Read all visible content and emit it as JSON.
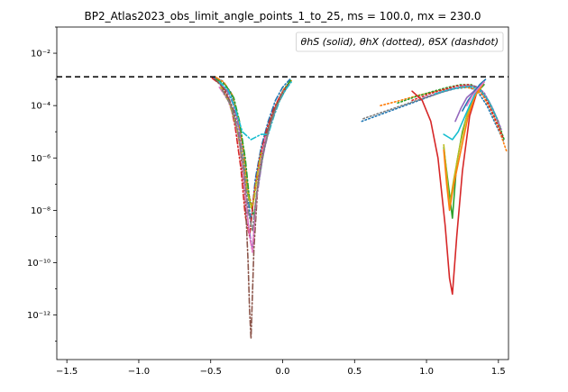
{
  "chart_data": {
    "type": "line",
    "title": "BP2_Atlas2023_obs_limit_angle_points_1_to_25, ms = 100.0, mx = 230.0",
    "xlabel": "",
    "ylabel": "",
    "xlim": [
      -1.57,
      1.57
    ],
    "ylim_log10": [
      -13.7,
      -1.0
    ],
    "yscale": "log",
    "x_ticks": [
      -1.5,
      -1.0,
      -0.5,
      0.0,
      0.5,
      1.0,
      1.5
    ],
    "x_tick_labels": [
      "−1.5",
      "−1.0",
      "−0.5",
      "0.0",
      "0.5",
      "1.0",
      "1.5"
    ],
    "y_ticks_log10": [
      -12,
      -10,
      -8,
      -6,
      -4,
      -2
    ],
    "y_tick_labels": [
      "10⁻¹²",
      "10⁻¹⁰",
      "10⁻⁸",
      "10⁻⁶",
      "10⁻⁴",
      "10⁻²"
    ],
    "legend_text": "θhS (solid), θhX (dotted), θSX (dashdot)",
    "legend_placement": "top-right",
    "grid": false,
    "reference_line": {
      "y_log10": -2.9,
      "style": "dashed",
      "color": "#000000"
    },
    "series": [
      {
        "style": "dashdot",
        "color": "#1f77b4",
        "x": [
          -0.48,
          -0.42,
          -0.36,
          -0.32,
          -0.28,
          -0.25,
          -0.22,
          -0.19,
          -0.15,
          -0.1,
          -0.05,
          0.0,
          0.05
        ],
        "y_log10": [
          -2.95,
          -3.05,
          -3.5,
          -4.3,
          -5.5,
          -7.0,
          -8.5,
          -6.8,
          -5.6,
          -4.6,
          -3.8,
          -3.3,
          -3.0
        ]
      },
      {
        "style": "dashdot",
        "color": "#ff7f0e",
        "x": [
          -0.47,
          -0.41,
          -0.35,
          -0.31,
          -0.27,
          -0.24,
          -0.21,
          -0.18,
          -0.14,
          -0.09,
          -0.04,
          0.01,
          0.06
        ],
        "y_log10": [
          -2.9,
          -3.1,
          -3.6,
          -4.5,
          -5.8,
          -7.3,
          -7.9,
          -6.9,
          -5.7,
          -4.7,
          -3.9,
          -3.35,
          -3.05
        ]
      },
      {
        "style": "dashdot",
        "color": "#2ca02c",
        "x": [
          -0.46,
          -0.4,
          -0.34,
          -0.3,
          -0.26,
          -0.23,
          -0.2,
          -0.17,
          -0.13,
          -0.08,
          -0.03,
          0.02,
          0.06
        ],
        "y_log10": [
          -3.0,
          -3.2,
          -3.7,
          -4.6,
          -6.0,
          -7.6,
          -8.2,
          -7.0,
          -5.7,
          -4.6,
          -3.8,
          -3.3,
          -3.0
        ]
      },
      {
        "style": "dashdot",
        "color": "#d62728",
        "x": [
          -0.49,
          -0.43,
          -0.37,
          -0.33,
          -0.29,
          -0.26,
          -0.23,
          -0.2,
          -0.16,
          -0.11,
          -0.06,
          -0.01,
          0.04
        ],
        "y_log10": [
          -2.95,
          -3.2,
          -3.8,
          -4.8,
          -6.4,
          -8.2,
          -9.0,
          -7.4,
          -6.0,
          -4.9,
          -4.1,
          -3.55,
          -3.2
        ]
      },
      {
        "style": "dashdot",
        "color": "#9467bd",
        "x": [
          -0.45,
          -0.39,
          -0.34,
          -0.3,
          -0.27,
          -0.24,
          -0.21,
          -0.18,
          -0.14,
          -0.09,
          -0.04
        ],
        "y_log10": [
          -3.1,
          -3.4,
          -4.0,
          -5.0,
          -6.5,
          -8.5,
          -9.5,
          -7.5,
          -6.0,
          -4.8,
          -4.0
        ]
      },
      {
        "style": "dashdot",
        "color": "#8c564b",
        "x": [
          -0.47,
          -0.4,
          -0.34,
          -0.3,
          -0.26,
          -0.24,
          -0.23,
          -0.22,
          -0.2,
          -0.17,
          -0.12,
          -0.06,
          0.0,
          0.04
        ],
        "y_log10": [
          -3.0,
          -3.4,
          -4.2,
          -5.4,
          -7.5,
          -10.0,
          -11.8,
          -12.9,
          -9.5,
          -6.8,
          -5.2,
          -4.2,
          -3.6,
          -3.2
        ]
      },
      {
        "style": "dashdot",
        "color": "#e377c2",
        "x": [
          -0.44,
          -0.38,
          -0.33,
          -0.29,
          -0.26,
          -0.23,
          -0.21,
          -0.19,
          -0.16,
          -0.12
        ],
        "y_log10": [
          -3.3,
          -3.8,
          -4.6,
          -5.8,
          -7.4,
          -9.0,
          -9.6,
          -8.0,
          -6.4,
          -5.2
        ]
      },
      {
        "style": "dashdot",
        "color": "#bcbd22",
        "x": [
          -0.43,
          -0.37,
          -0.32,
          -0.28,
          -0.25,
          -0.22,
          -0.2,
          -0.18,
          -0.15
        ],
        "y_log10": [
          -3.3,
          -3.9,
          -4.8,
          -6.0,
          -7.2,
          -7.9,
          -7.6,
          -6.8,
          -5.8
        ]
      },
      {
        "style": "dashdot",
        "color": "#17becf",
        "x": [
          -0.44,
          -0.38,
          -0.33,
          -0.28,
          -0.22,
          -0.15,
          -0.1,
          -0.06,
          -0.02,
          0.02,
          0.06
        ],
        "y_log10": [
          -3.1,
          -3.4,
          -4.1,
          -5.0,
          -5.3,
          -5.1,
          -5.1,
          -4.4,
          -3.8,
          -3.4,
          -3.1
        ]
      },
      {
        "style": "dashdot",
        "color": "#7f7f7f",
        "x": [
          -0.42,
          -0.36,
          -0.31,
          -0.27,
          -0.24,
          -0.21,
          -0.18,
          -0.14,
          -0.09,
          -0.04,
          0.01
        ],
        "y_log10": [
          -3.4,
          -4.0,
          -5.0,
          -6.4,
          -8.0,
          -8.8,
          -7.3,
          -5.9,
          -4.8,
          -4.0,
          -3.4
        ]
      },
      {
        "style": "dotted",
        "color": "#1f77b4",
        "x": [
          0.55,
          0.7,
          0.85,
          1.0,
          1.1,
          1.2,
          1.3,
          1.36,
          1.42,
          1.48,
          1.54
        ],
        "y_log10": [
          -4.6,
          -4.3,
          -4.0,
          -3.7,
          -3.5,
          -3.35,
          -3.3,
          -3.5,
          -4.0,
          -4.7,
          -5.4
        ]
      },
      {
        "style": "dotted",
        "color": "#ff7f0e",
        "x": [
          0.68,
          0.82,
          0.95,
          1.07,
          1.17,
          1.26,
          1.33,
          1.39,
          1.45,
          1.51,
          1.56
        ],
        "y_log10": [
          -4.0,
          -3.8,
          -3.6,
          -3.45,
          -3.35,
          -3.3,
          -3.35,
          -3.6,
          -4.2,
          -5.0,
          -5.8
        ]
      },
      {
        "style": "dotted",
        "color": "#2ca02c",
        "x": [
          0.8,
          0.93,
          1.05,
          1.15,
          1.24,
          1.31,
          1.37,
          1.43,
          1.49,
          1.54
        ],
        "y_log10": [
          -3.9,
          -3.65,
          -3.45,
          -3.3,
          -3.2,
          -3.2,
          -3.35,
          -3.8,
          -4.5,
          -5.3
        ]
      },
      {
        "style": "dotted",
        "color": "#d62728",
        "x": [
          0.9,
          1.02,
          1.12,
          1.21,
          1.29,
          1.35,
          1.41,
          1.47,
          1.53
        ],
        "y_log10": [
          -3.8,
          -3.55,
          -3.38,
          -3.25,
          -3.2,
          -3.3,
          -3.7,
          -4.4,
          -5.2
        ]
      },
      {
        "style": "dotted",
        "color": "#9467bd",
        "x": [
          0.98,
          1.09,
          1.18,
          1.27,
          1.34,
          1.4,
          1.46,
          1.52
        ],
        "y_log10": [
          -3.7,
          -3.5,
          -3.35,
          -3.25,
          -3.25,
          -3.5,
          -4.1,
          -4.9
        ]
      },
      {
        "style": "dotted",
        "color": "#7f7f7f",
        "x": [
          0.56,
          0.72,
          0.88,
          1.02,
          1.13,
          1.23,
          1.32,
          1.38,
          1.44,
          1.5
        ],
        "y_log10": [
          -4.5,
          -4.2,
          -3.9,
          -3.65,
          -3.45,
          -3.3,
          -3.25,
          -3.45,
          -3.9,
          -4.6
        ]
      },
      {
        "style": "dotted",
        "color": "#17becf",
        "x": [
          1.06,
          1.15,
          1.24,
          1.31,
          1.37,
          1.43,
          1.49
        ],
        "y_log10": [
          -3.55,
          -3.4,
          -3.3,
          -3.28,
          -3.4,
          -3.8,
          -4.5
        ]
      },
      {
        "style": "solid",
        "color": "#d62728",
        "x": [
          0.9,
          0.97,
          1.03,
          1.08,
          1.13,
          1.16,
          1.18,
          1.21,
          1.25,
          1.3,
          1.35,
          1.4
        ],
        "y_log10": [
          -3.45,
          -3.8,
          -4.6,
          -6.0,
          -8.6,
          -10.6,
          -11.2,
          -9.0,
          -6.5,
          -4.4,
          -3.5,
          -3.1
        ]
      },
      {
        "style": "solid",
        "color": "#2ca02c",
        "x": [
          1.12,
          1.14,
          1.16,
          1.18,
          1.21,
          1.25,
          1.3,
          1.35,
          1.4
        ],
        "y_log10": [
          -5.6,
          -6.5,
          -7.4,
          -8.3,
          -6.2,
          -5.0,
          -4.0,
          -3.5,
          -3.2
        ]
      },
      {
        "style": "solid",
        "color": "#bcbd22",
        "x": [
          1.12,
          1.14,
          1.16,
          1.19,
          1.23,
          1.28,
          1.33,
          1.38
        ],
        "y_log10": [
          -5.5,
          -6.6,
          -7.8,
          -6.8,
          -5.6,
          -4.4,
          -3.7,
          -3.3
        ]
      },
      {
        "style": "solid",
        "color": "#ff7f0e",
        "x": [
          1.12,
          1.14,
          1.16,
          1.19,
          1.24,
          1.29,
          1.34,
          1.39
        ],
        "y_log10": [
          -5.7,
          -7.0,
          -8.0,
          -7.0,
          -5.7,
          -4.4,
          -3.6,
          -3.2
        ]
      },
      {
        "style": "solid",
        "color": "#17becf",
        "x": [
          1.12,
          1.15,
          1.18,
          1.22,
          1.26,
          1.3,
          1.35,
          1.4
        ],
        "y_log10": [
          -5.1,
          -5.2,
          -5.3,
          -5.0,
          -4.5,
          -4.0,
          -3.4,
          -3.1
        ]
      },
      {
        "style": "solid",
        "color": "#9467bd",
        "x": [
          1.2,
          1.24,
          1.28,
          1.32,
          1.36,
          1.4
        ],
        "y_log10": [
          -4.6,
          -4.1,
          -3.7,
          -3.5,
          -3.3,
          -3.1
        ]
      },
      {
        "style": "solid",
        "color": "#1f77b4",
        "x": [
          1.25,
          1.29,
          1.33,
          1.37,
          1.41
        ],
        "y_log10": [
          -4.2,
          -3.8,
          -3.5,
          -3.2,
          -3.0
        ]
      },
      {
        "style": "solid",
        "color": "#e377c2",
        "x": [
          1.28,
          1.32,
          1.36,
          1.4
        ],
        "y_log10": [
          -4.0,
          -3.6,
          -3.35,
          -3.1
        ]
      }
    ]
  }
}
